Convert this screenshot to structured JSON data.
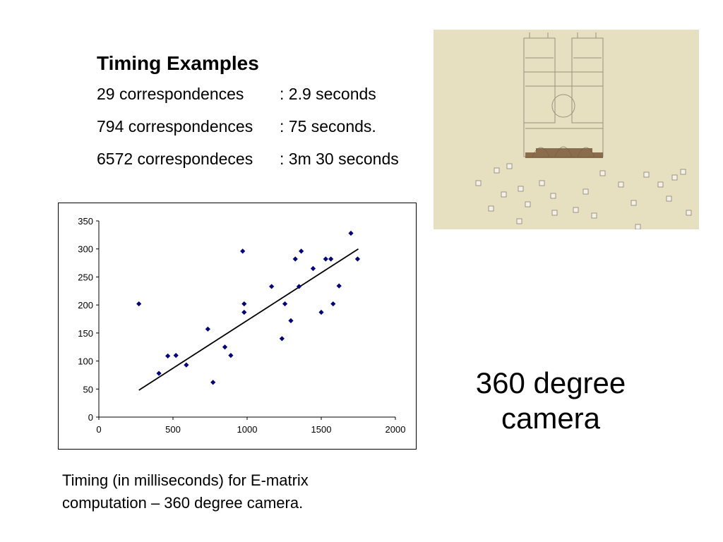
{
  "timing": {
    "title": "Timing Examples",
    "rows": [
      {
        "count": "29 correspondences",
        "time": ": 2.9 seconds"
      },
      {
        "count": "794 correspondences",
        "time": ": 75 seconds."
      },
      {
        "count": "6572 correspondeces",
        "time": ": 3m 30 seconds"
      }
    ]
  },
  "caption": {
    "line1": "Timing (in milliseconds) for E-matrix",
    "line2": "computation – 360 degree camera."
  },
  "camera_label": {
    "line1": "360 degree",
    "line2": "camera"
  },
  "photo": {
    "description_icon": "notre-dame-point-cloud-image",
    "bg_color": "#e6dfc0"
  },
  "chart_data": {
    "type": "scatter",
    "xlim": [
      0,
      2000
    ],
    "ylim": [
      0,
      350
    ],
    "xticks": [
      0,
      500,
      1000,
      1500,
      2000
    ],
    "yticks": [
      0,
      50,
      100,
      150,
      200,
      250,
      300,
      350
    ],
    "grid": false,
    "point_color": "#000080",
    "trendline": {
      "x": [
        270,
        1750
      ],
      "y": [
        48,
        300
      ]
    },
    "series": [
      {
        "points": [
          {
            "x": 270,
            "y": 202
          },
          {
            "x": 405,
            "y": 78
          },
          {
            "x": 465,
            "y": 109
          },
          {
            "x": 520,
            "y": 110
          },
          {
            "x": 590,
            "y": 93
          },
          {
            "x": 735,
            "y": 157
          },
          {
            "x": 770,
            "y": 62
          },
          {
            "x": 850,
            "y": 125
          },
          {
            "x": 890,
            "y": 110
          },
          {
            "x": 970,
            "y": 296
          },
          {
            "x": 980,
            "y": 202
          },
          {
            "x": 980,
            "y": 187
          },
          {
            "x": 1165,
            "y": 233
          },
          {
            "x": 1235,
            "y": 140
          },
          {
            "x": 1255,
            "y": 202
          },
          {
            "x": 1295,
            "y": 172
          },
          {
            "x": 1325,
            "y": 282
          },
          {
            "x": 1350,
            "y": 233
          },
          {
            "x": 1365,
            "y": 296
          },
          {
            "x": 1445,
            "y": 265
          },
          {
            "x": 1500,
            "y": 187
          },
          {
            "x": 1530,
            "y": 282
          },
          {
            "x": 1565,
            "y": 282
          },
          {
            "x": 1580,
            "y": 202
          },
          {
            "x": 1620,
            "y": 234
          },
          {
            "x": 1700,
            "y": 328
          },
          {
            "x": 1745,
            "y": 282
          }
        ]
      }
    ]
  }
}
